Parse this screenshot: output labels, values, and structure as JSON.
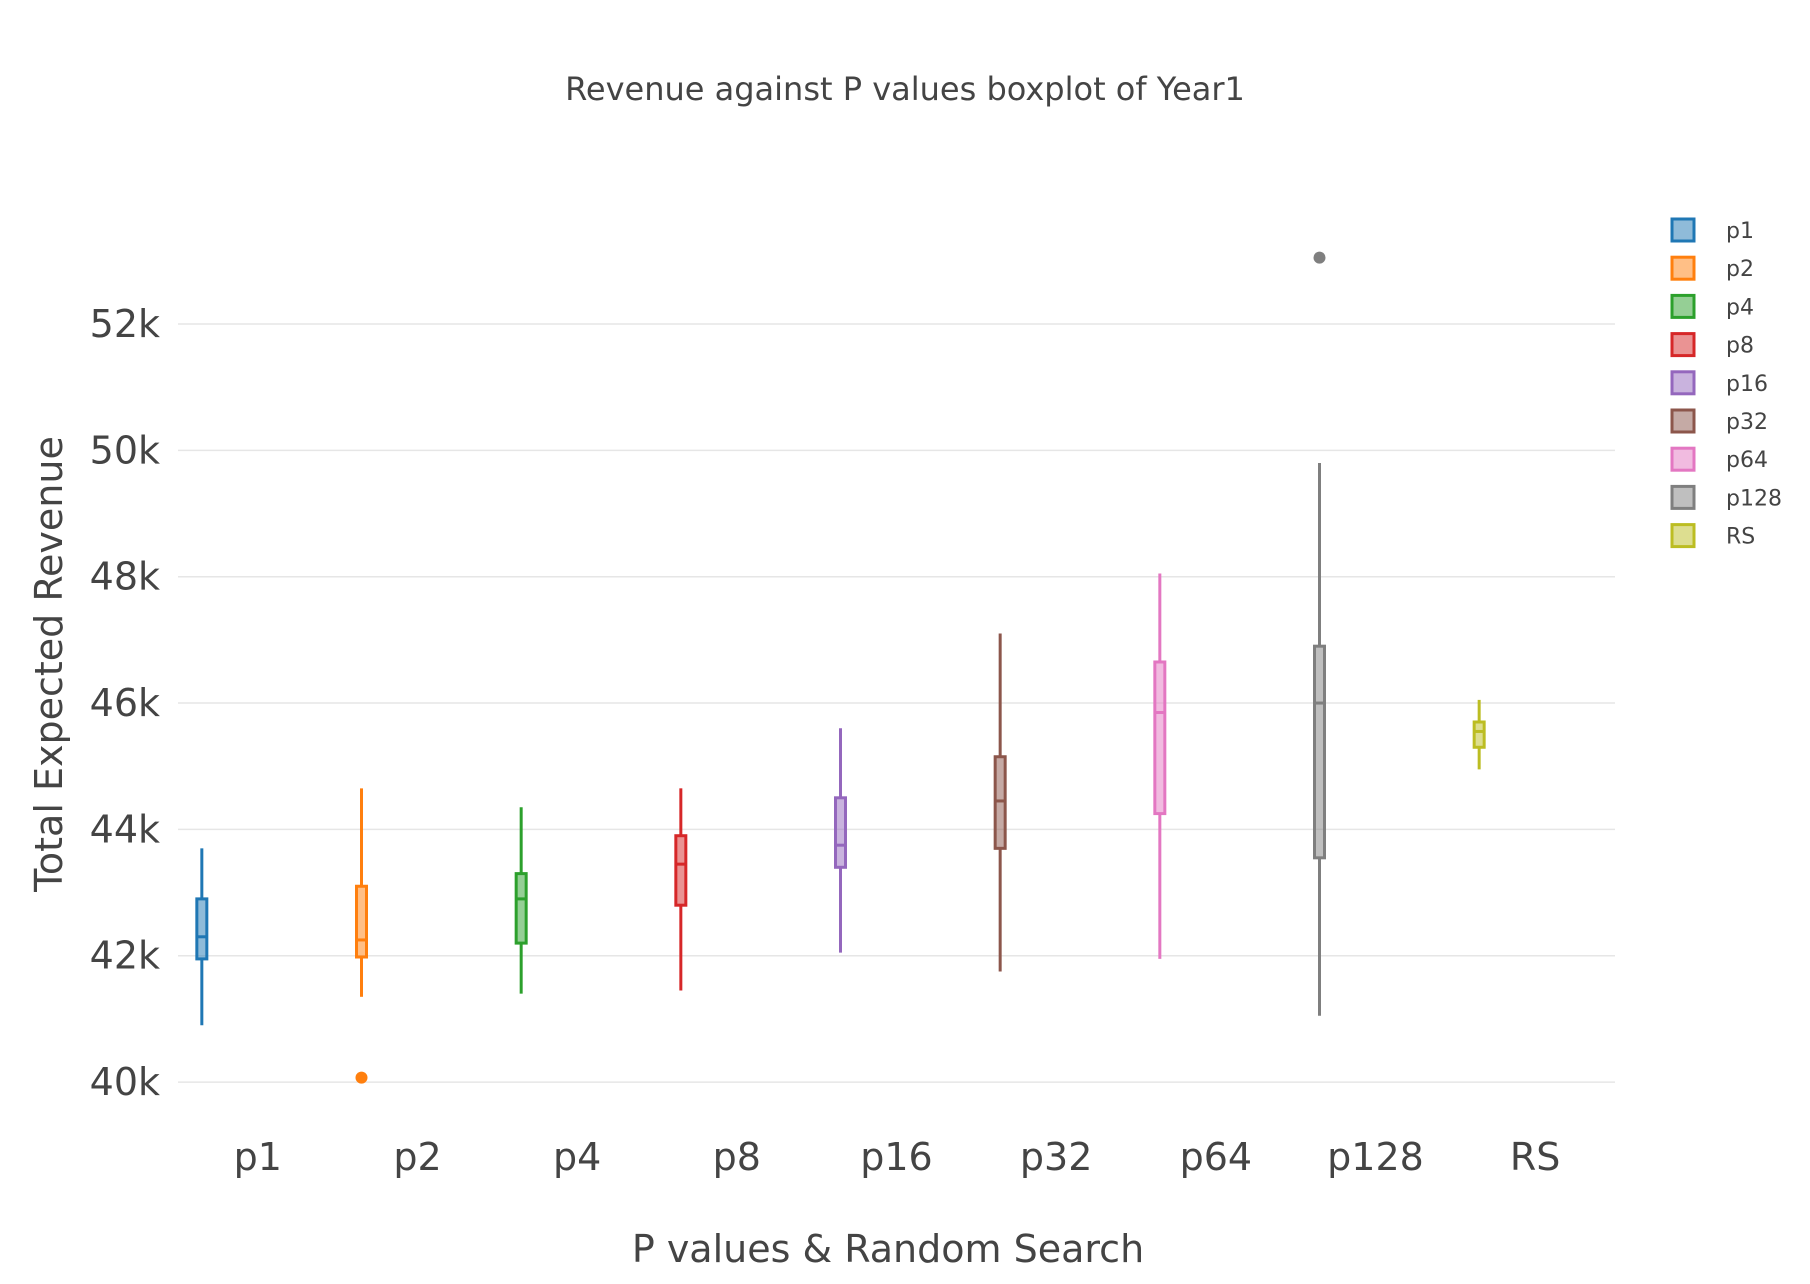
{
  "chart_data": {
    "type": "box",
    "title": "Revenue against P values boxplot of Year1",
    "xlabel": "P values & Random Search",
    "ylabel": "Total Expected Revenue",
    "ylim": [
      39400,
      54200
    ],
    "yticks": [
      40000,
      42000,
      44000,
      46000,
      48000,
      50000,
      52000
    ],
    "ytick_labels": [
      "40k",
      "42k",
      "44k",
      "46k",
      "48k",
      "50k",
      "52k"
    ],
    "categories": [
      "p1",
      "p2",
      "p4",
      "p8",
      "p16",
      "p32",
      "p64",
      "p128",
      "RS"
    ],
    "grid": true,
    "legend_position": "right",
    "series": [
      {
        "name": "p1",
        "color": "#1f77b4",
        "min": 40900,
        "q1": 41950,
        "median": 42300,
        "q3": 42900,
        "max": 43700,
        "outliers": []
      },
      {
        "name": "p2",
        "color": "#ff7f0e",
        "min": 41350,
        "q1": 41980,
        "median": 42250,
        "q3": 43100,
        "max": 44650,
        "outliers": [
          40070
        ]
      },
      {
        "name": "p4",
        "color": "#2ca02c",
        "min": 41400,
        "q1": 42200,
        "median": 42900,
        "q3": 43300,
        "max": 44350,
        "outliers": []
      },
      {
        "name": "p8",
        "color": "#d62728",
        "min": 41450,
        "q1": 42800,
        "median": 43450,
        "q3": 43900,
        "max": 44650,
        "outliers": []
      },
      {
        "name": "p16",
        "color": "#9467bd",
        "min": 42050,
        "q1": 43400,
        "median": 43750,
        "q3": 44500,
        "max": 45600,
        "outliers": []
      },
      {
        "name": "p32",
        "color": "#8c564b",
        "min": 41750,
        "q1": 43700,
        "median": 44450,
        "q3": 45150,
        "max": 47100,
        "outliers": []
      },
      {
        "name": "p64",
        "color": "#e377c2",
        "min": 41950,
        "q1": 44250,
        "median": 45850,
        "q3": 46650,
        "max": 48050,
        "outliers": []
      },
      {
        "name": "p128",
        "color": "#7f7f7f",
        "min": 41050,
        "q1": 43550,
        "median": 46000,
        "q3": 46900,
        "max": 49800,
        "outliers": [
          53050
        ]
      },
      {
        "name": "RS",
        "color": "#bcbd22",
        "min": 44950,
        "q1": 45300,
        "median": 45550,
        "q3": 45700,
        "max": 46050,
        "outliers": []
      }
    ]
  }
}
